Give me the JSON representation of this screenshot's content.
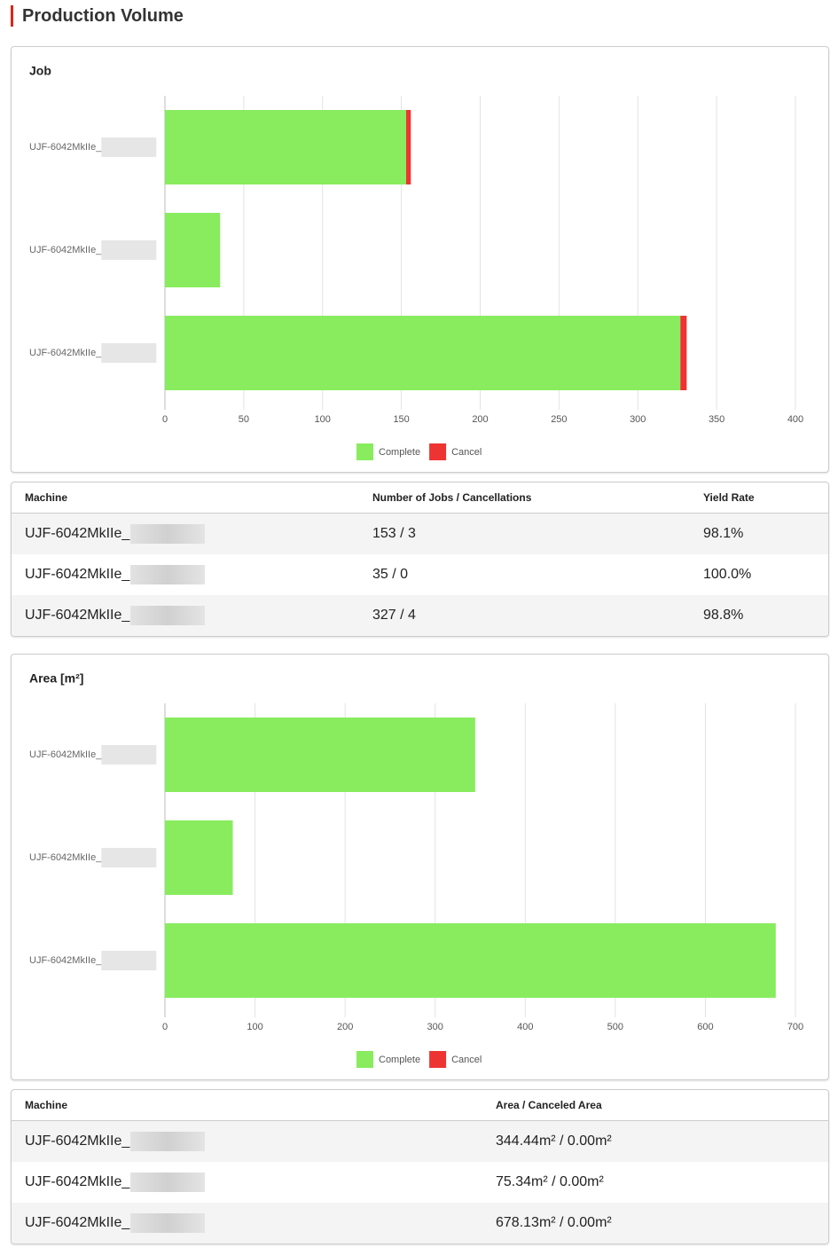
{
  "header": {
    "title": "Production Volume"
  },
  "chart_data": [
    {
      "type": "bar",
      "orientation": "horizontal",
      "stacked": true,
      "title": "Job",
      "categories": [
        "UJF-6042MkIIe_",
        "UJF-6042MkIIe_",
        "UJF-6042MkIIe_"
      ],
      "series": [
        {
          "name": "Complete",
          "color": "#88ec5e",
          "values": [
            153,
            35,
            327
          ]
        },
        {
          "name": "Cancel",
          "color": "#ee3333",
          "values": [
            3,
            0,
            4
          ]
        }
      ],
      "xlim": [
        0,
        400
      ],
      "xticks": [
        0,
        50,
        100,
        150,
        200,
        250,
        300,
        350,
        400
      ],
      "grid": true,
      "legend": "bottom"
    },
    {
      "type": "bar",
      "orientation": "horizontal",
      "stacked": true,
      "title": "Area [m²]",
      "categories": [
        "UJF-6042MkIIe_",
        "UJF-6042MkIIe_",
        "UJF-6042MkIIe_"
      ],
      "series": [
        {
          "name": "Complete",
          "color": "#88ec5e",
          "values": [
            344.44,
            75.34,
            678.13
          ]
        },
        {
          "name": "Cancel",
          "color": "#ee3333",
          "values": [
            0,
            0,
            0
          ]
        }
      ],
      "xlim": [
        0,
        700
      ],
      "xticks": [
        0,
        100,
        200,
        300,
        400,
        500,
        600,
        700
      ],
      "grid": true,
      "legend": "bottom"
    }
  ],
  "tables": [
    {
      "columns": [
        "Machine",
        "Number of Jobs / Cancellations",
        "Yield Rate"
      ],
      "rows": [
        [
          "UJF-6042MkIIe_",
          "153 / 3",
          "98.1%"
        ],
        [
          "UJF-6042MkIIe_",
          "35 / 0",
          "100.0%"
        ],
        [
          "UJF-6042MkIIe_",
          "327 / 4",
          "98.8%"
        ]
      ]
    },
    {
      "columns": [
        "Machine",
        "Area / Canceled Area"
      ],
      "rows": [
        [
          "UJF-6042MkIIe_",
          "344.44m² / 0.00m²"
        ],
        [
          "UJF-6042MkIIe_",
          "75.34m² / 0.00m²"
        ],
        [
          "UJF-6042MkIIe_",
          "678.13m² / 0.00m²"
        ]
      ]
    }
  ]
}
